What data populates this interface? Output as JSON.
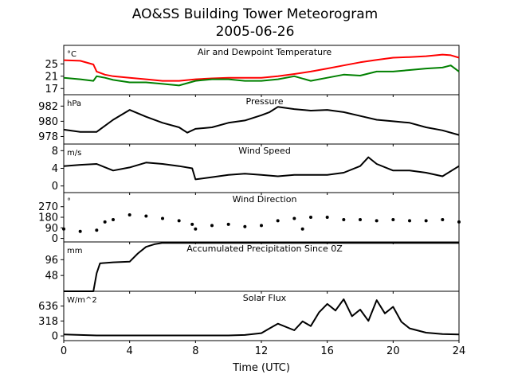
{
  "figure": {
    "title": "AO&SS Building Tower Meteorogram",
    "subtitle": "2005-06-26",
    "xlabel": "Time (UTC)"
  },
  "chart_data": [
    {
      "type": "line",
      "title": "Air and Dewpoint Temperature",
      "unit": "°C",
      "xlim": [
        0,
        24
      ],
      "ylim": [
        15,
        31
      ],
      "yticks": [
        17,
        21,
        25
      ],
      "x": [
        0,
        1,
        1.8,
        2,
        2.5,
        3,
        4,
        5,
        6,
        7,
        8,
        9,
        10,
        11,
        12,
        13,
        14,
        15,
        16,
        17,
        18,
        19,
        20,
        21,
        22,
        23,
        23.5,
        24
      ],
      "series": [
        {
          "name": "Air Temperature",
          "color": "#ff0000",
          "values": [
            26.2,
            26,
            24.8,
            22.5,
            21.5,
            21,
            20.5,
            20,
            19.5,
            19.5,
            20,
            20.3,
            20.5,
            20.5,
            20.5,
            21,
            21.7,
            22.5,
            23.5,
            24.5,
            25.5,
            26.3,
            27,
            27.2,
            27.5,
            28,
            27.8,
            27
          ]
        },
        {
          "name": "Dewpoint Temperature",
          "color": "#008000",
          "values": [
            20.5,
            20,
            19.5,
            21,
            20.5,
            19.8,
            19,
            19,
            18.5,
            18,
            19.5,
            20,
            20,
            19.5,
            19.5,
            20,
            21,
            19.5,
            20.5,
            21.5,
            21.2,
            22.5,
            22.5,
            23,
            23.5,
            23.8,
            24.5,
            22.5
          ]
        }
      ]
    },
    {
      "type": "line",
      "title": "Pressure",
      "unit": "hPa",
      "xlim": [
        0,
        24
      ],
      "ylim": [
        977,
        983.5
      ],
      "yticks": [
        978,
        980,
        982
      ],
      "x": [
        0,
        1,
        2,
        3,
        4,
        5,
        6,
        7,
        7.5,
        8,
        9,
        10,
        11,
        12,
        12.5,
        13,
        14,
        15,
        16,
        17,
        18,
        19,
        20,
        21,
        22,
        23,
        24
      ],
      "series": [
        {
          "name": "Pressure",
          "color": "#000000",
          "values": [
            978.9,
            978.6,
            978.6,
            980.2,
            981.5,
            980.6,
            979.8,
            979.2,
            978.5,
            979.0,
            979.2,
            979.8,
            980.1,
            980.8,
            981.2,
            981.9,
            981.6,
            981.4,
            981.5,
            981.2,
            980.7,
            980.2,
            980.0,
            979.8,
            979.2,
            978.8,
            978.2
          ]
        }
      ]
    },
    {
      "type": "line",
      "title": "Wind Speed",
      "unit": "m/s",
      "xlim": [
        0,
        24
      ],
      "ylim": [
        -1.5,
        9.5
      ],
      "yticks": [
        0,
        4,
        8
      ],
      "x": [
        0,
        1,
        2,
        3,
        4,
        5,
        6,
        7,
        7.8,
        8,
        9,
        10,
        11,
        12,
        13,
        14,
        15,
        16,
        17,
        18,
        18.5,
        19,
        20,
        21,
        22,
        23,
        24
      ],
      "series": [
        {
          "name": "Wind Speed",
          "color": "#000000",
          "values": [
            4.5,
            4.8,
            5.0,
            3.5,
            4.2,
            5.3,
            5.0,
            4.5,
            4.0,
            1.5,
            2.0,
            2.5,
            2.8,
            2.5,
            2.2,
            2.5,
            2.5,
            2.5,
            3.0,
            4.5,
            6.5,
            5.0,
            3.5,
            3.5,
            3.0,
            2.2,
            4.5
          ]
        }
      ]
    },
    {
      "type": "scatter",
      "title": "Wind Direction",
      "unit": "°",
      "xlim": [
        0,
        24
      ],
      "ylim": [
        -30,
        390
      ],
      "yticks": [
        0,
        90,
        180,
        270
      ],
      "x": [
        0,
        1,
        2,
        2.5,
        3,
        4,
        5,
        6,
        7,
        7.8,
        8,
        9,
        10,
        11,
        12,
        13,
        14,
        14.5,
        15,
        16,
        17,
        18,
        19,
        20,
        21,
        22,
        23,
        24
      ],
      "series": [
        {
          "name": "Wind Direction",
          "color": "#000000",
          "values": [
            80,
            60,
            70,
            140,
            160,
            200,
            190,
            170,
            150,
            120,
            80,
            110,
            120,
            100,
            110,
            150,
            170,
            80,
            180,
            180,
            160,
            160,
            150,
            160,
            150,
            150,
            160,
            140
          ]
        }
      ]
    },
    {
      "type": "line",
      "title": "Accumulated Precipitation Since 0Z",
      "unit": "mm",
      "xlim": [
        0,
        24
      ],
      "ylim": [
        0,
        150
      ],
      "yticks": [
        48,
        96
      ],
      "x": [
        0,
        1.8,
        2,
        2.2,
        3,
        4,
        4.5,
        5,
        5.5,
        6,
        24
      ],
      "series": [
        {
          "name": "Accumulated Precipitation",
          "color": "#000000",
          "values": [
            0,
            0,
            55,
            85,
            88,
            90,
            115,
            135,
            143,
            147,
            147
          ]
        }
      ]
    },
    {
      "type": "line",
      "title": "Solar Flux",
      "unit": "W/m^2",
      "xlim": [
        0,
        24
      ],
      "ylim": [
        -100,
        950
      ],
      "yticks": [
        0,
        318,
        636
      ],
      "x": [
        0,
        1,
        2,
        4,
        6,
        8,
        10,
        11,
        12,
        12.5,
        13,
        14,
        14.5,
        15,
        15.5,
        16,
        16.5,
        17,
        17.5,
        18,
        18.5,
        19,
        19.5,
        20,
        20.5,
        21,
        22,
        23,
        24
      ],
      "series": [
        {
          "name": "Solar Flux",
          "color": "#000000",
          "values": [
            30,
            20,
            10,
            10,
            10,
            10,
            10,
            20,
            60,
            160,
            260,
            120,
            310,
            210,
            500,
            680,
            540,
            780,
            420,
            560,
            320,
            760,
            480,
            620,
            300,
            160,
            70,
            40,
            30
          ]
        }
      ]
    }
  ],
  "x_ticks": [
    "0",
    "4",
    "8",
    "12",
    "16",
    "20",
    "24"
  ]
}
